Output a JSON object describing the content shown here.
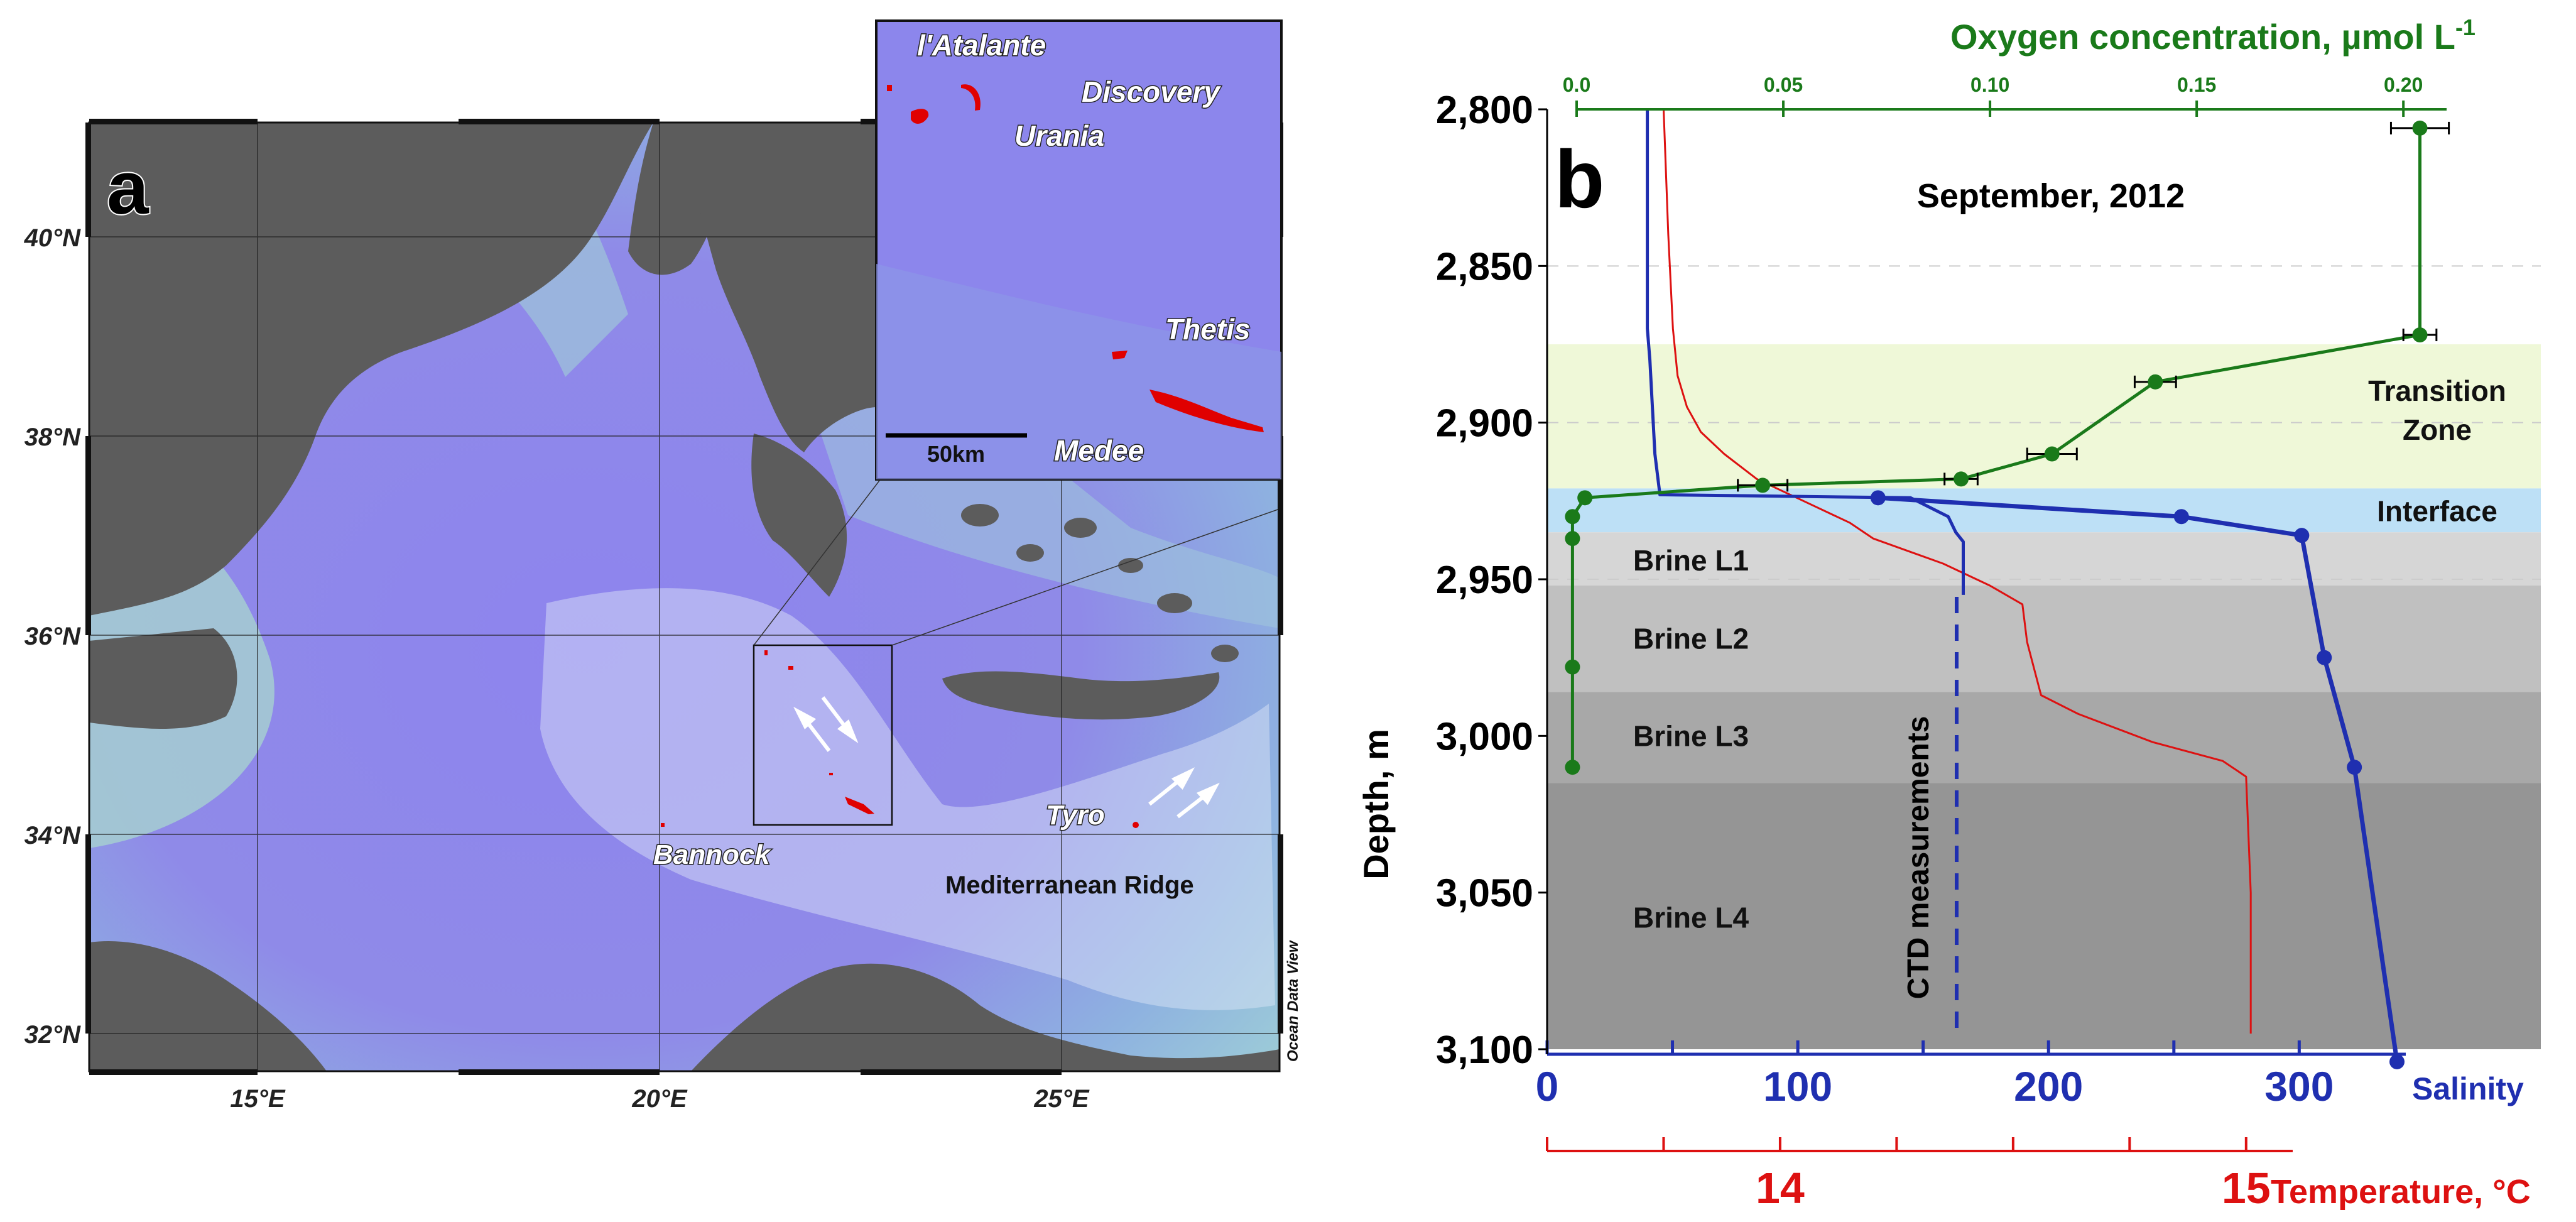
{
  "map_panel": {
    "panel_label": "a",
    "lat_labels": [
      "40°N",
      "38°N",
      "36°N",
      "34°N",
      "32°N"
    ],
    "lon_labels": [
      "15°E",
      "20°E",
      "25°E"
    ],
    "place_labels": {
      "bannock": "Bannock",
      "tyro": "Tyro",
      "ridge": "Mediterranean Ridge",
      "credit": "Ocean Data View"
    },
    "inset": {
      "labels": [
        "l'Atalante",
        "Discovery",
        "Urania",
        "Thetis",
        "Medee"
      ],
      "scale_label": "50km"
    }
  },
  "chart_data": {
    "type": "line",
    "panel_label": "b",
    "title": "September, 2012",
    "ylabel": "Depth, m",
    "ylim": [
      2800,
      3100
    ],
    "y_ticks": [
      "2,800",
      "2,850",
      "2,900",
      "2,950",
      "3,000",
      "3,050",
      "3,100"
    ],
    "axes": {
      "oxygen": {
        "label": "Oxygen concentration, µmol L",
        "label_superscript": "-1",
        "range": [
          0.0,
          0.21
        ],
        "ticks": [
          "0.0",
          "0.05",
          "0.10",
          "0.15",
          "0.20"
        ],
        "color": "#1a7a1a"
      },
      "salinity": {
        "label": "Salinity",
        "range": [
          0,
          340
        ],
        "ticks": [
          "0",
          "100",
          "200",
          "300"
        ],
        "color": "#1f2fb0"
      },
      "temperature": {
        "label": "Temperature, °C",
        "range": [
          13.5,
          15.1
        ],
        "ticks": [
          "14",
          "15"
        ],
        "color": "#dd1111"
      }
    },
    "zones": [
      {
        "name": "Transition Zone",
        "from": 2875,
        "to": 2921,
        "color": "#eff8d8"
      },
      {
        "name": "Interface",
        "from": 2921,
        "to": 2935,
        "color": "#bde0f6"
      },
      {
        "name": "Brine L1",
        "from": 2935,
        "to": 2952,
        "color": "#d6d6d6"
      },
      {
        "name": "Brine L2",
        "from": 2952,
        "to": 2986,
        "color": "#c0c0c0"
      },
      {
        "name": "Brine L3",
        "from": 2986,
        "to": 3015,
        "color": "#a8a8a8"
      },
      {
        "name": "Brine L4",
        "from": 3015,
        "to": 3100,
        "color": "#959595"
      }
    ],
    "ctd_label": "CTD measurements",
    "series": [
      {
        "name": "Oxygen",
        "x": [
          0.204,
          0.204,
          0.14,
          0.115,
          0.093,
          0.045,
          0.002,
          -0.001,
          -0.001,
          -0.001,
          -0.001
        ],
        "y": [
          2806,
          2872,
          2887,
          2910,
          2918,
          2920,
          2924,
          2930,
          2937,
          2978,
          3010
        ],
        "x_err": [
          0.007,
          0.004,
          0.005,
          0.006,
          0.004,
          0.006,
          0,
          0,
          0,
          0,
          0
        ]
      },
      {
        "name": "Salinity bottle",
        "x": [
          132,
          253,
          301,
          310,
          322,
          339
        ],
        "y": [
          2924,
          2930,
          2936,
          2975,
          3010,
          3104
        ]
      },
      {
        "name": "Salinity CTD",
        "x": [
          40,
          40,
          40,
          41,
          43,
          45,
          145,
          160,
          163,
          166,
          166,
          166
        ],
        "y": [
          2800,
          2850,
          2870,
          2880,
          2910,
          2923,
          2924,
          2930,
          2935,
          2938,
          2942,
          2955
        ]
      },
      {
        "name": "Temperature CTD",
        "x": [
          13.75,
          13.76,
          13.77,
          13.78,
          13.8,
          13.83,
          13.88,
          13.95,
          14.05,
          14.15,
          14.2,
          14.35,
          14.45,
          14.52,
          14.53,
          14.56,
          14.64,
          14.8,
          14.95,
          15.0,
          15.01,
          15.01
        ],
        "y": [
          2800,
          2840,
          2870,
          2885,
          2895,
          2903,
          2910,
          2918,
          2925,
          2932,
          2937,
          2945,
          2952,
          2958,
          2970,
          2987,
          2993,
          3002,
          3008,
          3013,
          3050,
          3095
        ]
      }
    ]
  }
}
